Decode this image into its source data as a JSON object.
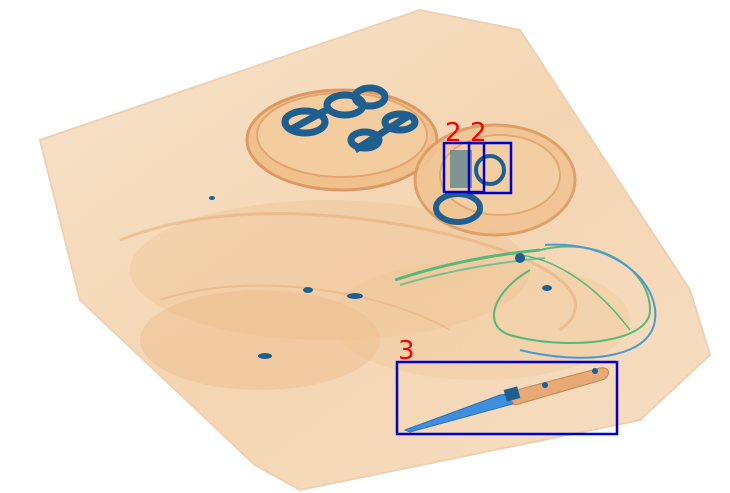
{
  "image": {
    "kind": "x-ray baggage scan",
    "colors": {
      "background": "#ffffff",
      "organic": "#f2c9a0",
      "organic_dark": "#e7a975",
      "metal_blue": "#1f5f8f",
      "knife_blade": "#3f8fe0",
      "wire_green": "#58b878",
      "box_stroke": "#0000cc",
      "label_color": "#ff0000"
    }
  },
  "detections": [
    {
      "label": "2"
    },
    {
      "label": "2"
    },
    {
      "label": "3"
    }
  ]
}
